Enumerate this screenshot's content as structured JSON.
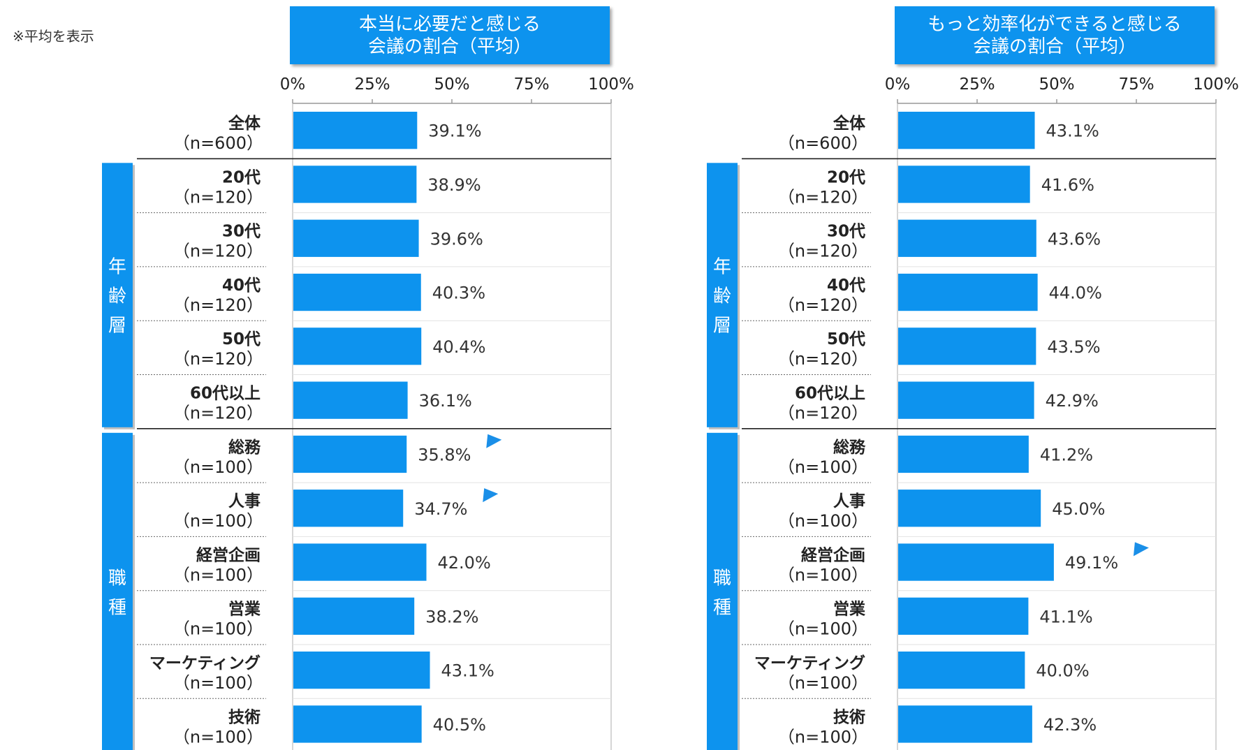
{
  "note": "※平均を表示",
  "chart_data": [
    {
      "type": "bar",
      "orientation": "horizontal",
      "title_line1": "本当に必要だと感じる",
      "title_line2": "会議の割合（平均）",
      "xlim": [
        0,
        100
      ],
      "x_ticks": [
        "0%",
        "25%",
        "50%",
        "75%",
        "100%"
      ],
      "groups": [
        {
          "name": "年齢層",
          "chars": [
            "年",
            "齢",
            "層"
          ],
          "start": 1,
          "end": 5
        },
        {
          "name": "職種",
          "chars": [
            "職",
            "種"
          ],
          "start": 6,
          "end": 11
        }
      ],
      "rows": [
        {
          "label": "全体",
          "n": "（n=600）",
          "value": 39.1,
          "value_label": "39.1%",
          "marker": "none"
        },
        {
          "label": "20代",
          "n": "（n=120）",
          "value": 38.9,
          "value_label": "38.9%",
          "marker": "none"
        },
        {
          "label": "30代",
          "n": "（n=120）",
          "value": 39.6,
          "value_label": "39.6%",
          "marker": "none"
        },
        {
          "label": "40代",
          "n": "（n=120）",
          "value": 40.3,
          "value_label": "40.3%",
          "marker": "none"
        },
        {
          "label": "50代",
          "n": "（n=120）",
          "value": 40.4,
          "value_label": "40.4%",
          "marker": "none"
        },
        {
          "label": "60代以上",
          "n": "（n=120）",
          "value": 36.1,
          "value_label": "36.1%",
          "marker": "none"
        },
        {
          "label": "総務",
          "n": "（n=100）",
          "value": 35.8,
          "value_label": "35.8%",
          "marker": "low"
        },
        {
          "label": "人事",
          "n": "（n=100）",
          "value": 34.7,
          "value_label": "34.7%",
          "marker": "low"
        },
        {
          "label": "経営企画",
          "n": "（n=100）",
          "value": 42.0,
          "value_label": "42.0%",
          "marker": "none"
        },
        {
          "label": "営業",
          "n": "（n=100）",
          "value": 38.2,
          "value_label": "38.2%",
          "marker": "none"
        },
        {
          "label": "マーケティング",
          "n": "（n=100）",
          "value": 43.1,
          "value_label": "43.1%",
          "marker": "none"
        },
        {
          "label": "技術",
          "n": "（n=100）",
          "value": 40.5,
          "value_label": "40.5%",
          "marker": "none"
        }
      ]
    },
    {
      "type": "bar",
      "orientation": "horizontal",
      "title_line1": "もっと効率化ができると感じる",
      "title_line2": "会議の割合（平均）",
      "xlim": [
        0,
        100
      ],
      "x_ticks": [
        "0%",
        "25%",
        "50%",
        "75%",
        "100%"
      ],
      "groups": [
        {
          "name": "年齢層",
          "chars": [
            "年",
            "齢",
            "層"
          ],
          "start": 1,
          "end": 5
        },
        {
          "name": "職種",
          "chars": [
            "職",
            "種"
          ],
          "start": 6,
          "end": 11
        }
      ],
      "rows": [
        {
          "label": "全体",
          "n": "（n=600）",
          "value": 43.1,
          "value_label": "43.1%",
          "marker": "none"
        },
        {
          "label": "20代",
          "n": "（n=120）",
          "value": 41.6,
          "value_label": "41.6%",
          "marker": "none"
        },
        {
          "label": "30代",
          "n": "（n=120）",
          "value": 43.6,
          "value_label": "43.6%",
          "marker": "none"
        },
        {
          "label": "40代",
          "n": "（n=120）",
          "value": 44.0,
          "value_label": "44.0%",
          "marker": "none"
        },
        {
          "label": "50代",
          "n": "（n=120）",
          "value": 43.5,
          "value_label": "43.5%",
          "marker": "none"
        },
        {
          "label": "60代以上",
          "n": "（n=120）",
          "value": 42.9,
          "value_label": "42.9%",
          "marker": "none"
        },
        {
          "label": "総務",
          "n": "（n=100）",
          "value": 41.2,
          "value_label": "41.2%",
          "marker": "none"
        },
        {
          "label": "人事",
          "n": "（n=100）",
          "value": 45.0,
          "value_label": "45.0%",
          "marker": "none"
        },
        {
          "label": "経営企画",
          "n": "（n=100）",
          "value": 49.1,
          "value_label": "49.1%",
          "marker": "high"
        },
        {
          "label": "営業",
          "n": "（n=100）",
          "value": 41.1,
          "value_label": "41.1%",
          "marker": "none"
        },
        {
          "label": "マーケティング",
          "n": "（n=100）",
          "value": 40.0,
          "value_label": "40.0%",
          "marker": "none"
        },
        {
          "label": "技術",
          "n": "（n=100）",
          "value": 42.3,
          "value_label": "42.3%",
          "marker": "none"
        }
      ]
    }
  ],
  "colors": {
    "bar": "#0d93ee",
    "group": "#0d93ee",
    "marker": "#1a8fe8"
  }
}
